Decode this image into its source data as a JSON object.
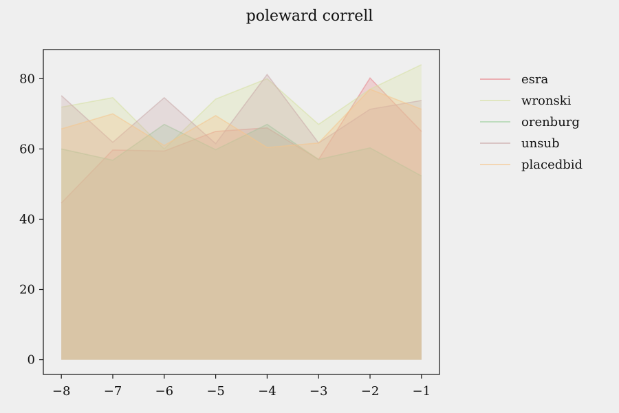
{
  "chart_data": {
    "type": "area",
    "title": "poleward correll",
    "xlabel": "",
    "ylabel": "",
    "x": [
      -8,
      -7,
      -6,
      -5,
      -4,
      -3,
      -2,
      -1
    ],
    "x_tick_labels": [
      "−8",
      "−7",
      "−6",
      "−5",
      "−4",
      "−3",
      "−2",
      "−1"
    ],
    "y_ticks": [
      0,
      20,
      40,
      60,
      80
    ],
    "y_tick_labels": [
      "0",
      "20",
      "40",
      "60",
      "80"
    ],
    "xlim": [
      -8.35,
      -0.65
    ],
    "ylim": [
      -4.2,
      88.3
    ],
    "grid": false,
    "legend_position": "outside-right",
    "series": [
      {
        "name": "esra",
        "color": "#e8848a",
        "values": [
          44.6,
          59.7,
          59.4,
          65.0,
          66.0,
          57.0,
          80.2,
          65.0
        ]
      },
      {
        "name": "wronski",
        "color": "#d6e0a0",
        "values": [
          71.9,
          74.6,
          60.0,
          74.2,
          80.0,
          67.0,
          77.0,
          84.0
        ]
      },
      {
        "name": "orenburg",
        "color": "#9dcf9d",
        "values": [
          60.0,
          56.8,
          67.0,
          59.8,
          67.0,
          57.0,
          60.3,
          52.3
        ]
      },
      {
        "name": "unsub",
        "color": "#c9a8a8",
        "values": [
          75.2,
          61.9,
          74.6,
          61.5,
          81.2,
          61.7,
          71.3,
          73.8
        ]
      },
      {
        "name": "placedbid",
        "color": "#f5c48a",
        "values": [
          65.7,
          70.0,
          61.0,
          69.5,
          60.4,
          61.7,
          77.0,
          71.3
        ]
      }
    ]
  }
}
